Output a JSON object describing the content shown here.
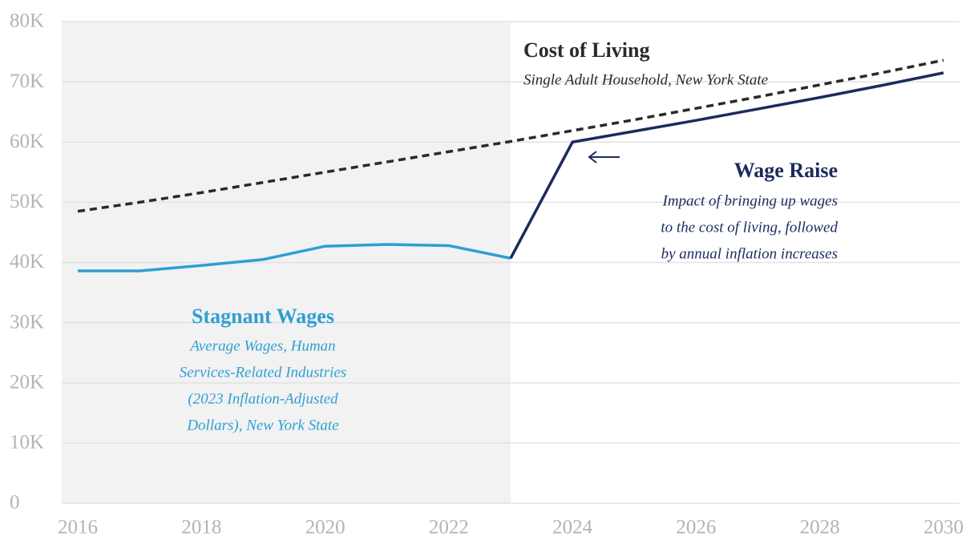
{
  "chart_data": {
    "type": "line",
    "x": [
      2016,
      2017,
      2018,
      2019,
      2020,
      2021,
      2022,
      2023,
      2024,
      2025,
      2026,
      2027,
      2028,
      2029,
      2030
    ],
    "series": [
      {
        "name": "Stagnant Wages",
        "color": "#2e9fd3",
        "dashed": false,
        "subtitle_lines": [
          "Average Wages, Human",
          "Services-Related Industries",
          "(2023 Inflation-Adjusted",
          "Dollars), New York State"
        ],
        "values": [
          38600,
          38600,
          39500,
          40500,
          42700,
          43000,
          42800,
          40700,
          null,
          null,
          null,
          null,
          null,
          null,
          null
        ]
      },
      {
        "name": "Wage Raise",
        "color": "#1c2b5e",
        "dashed": false,
        "subtitle_lines": [
          "Impact of bringing up wages",
          "to the cost of living, followed",
          "by annual inflation increases"
        ],
        "values": [
          null,
          null,
          null,
          null,
          null,
          null,
          null,
          40700,
          60000,
          61800,
          63600,
          65500,
          67400,
          69400,
          71500
        ]
      },
      {
        "name": "Cost of Living",
        "color": "#2a2a2a",
        "dashed": true,
        "subtitle_lines": [
          "Single Adult Household, New York State"
        ],
        "values": [
          48500,
          50000,
          51600,
          53300,
          55000,
          56700,
          58400,
          60100,
          61900,
          63700,
          65600,
          67500,
          69500,
          71500,
          73600
        ]
      }
    ],
    "xlim": [
      2015.74,
      2030.26
    ],
    "xticks": [
      2016,
      2018,
      2020,
      2022,
      2024,
      2026,
      2028,
      2030
    ],
    "ylim": [
      0,
      80000
    ],
    "yticks": [
      0,
      {
        "value": 10000,
        "label": "10K"
      },
      {
        "value": 20000,
        "label": "20K"
      },
      {
        "value": 30000,
        "label": "30K"
      },
      {
        "value": 40000,
        "label": "40K"
      },
      {
        "value": 50000,
        "label": "50K"
      },
      {
        "value": 60000,
        "label": "60K"
      },
      {
        "value": 70000,
        "label": "70K"
      },
      {
        "value": 80000,
        "label": "80K"
      }
    ],
    "grid": true,
    "shade_until": 2023
  }
}
